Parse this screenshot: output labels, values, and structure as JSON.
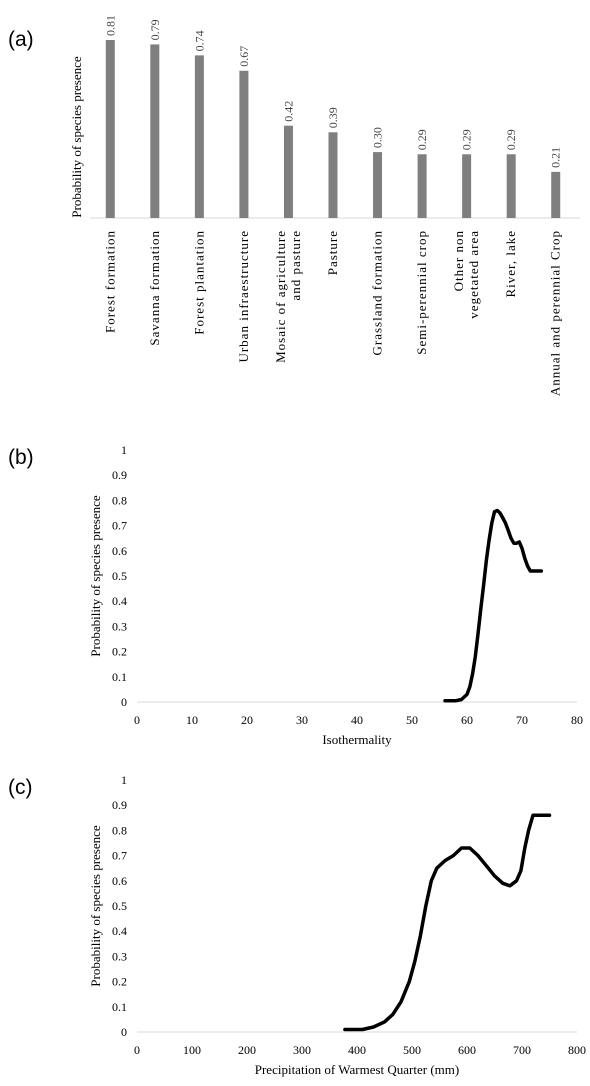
{
  "panels": {
    "a": "(a)",
    "b": "(b)",
    "c": "(c)"
  },
  "chart_data": [
    {
      "type": "bar",
      "ylabel": "Probability of species presence",
      "categories": [
        "Forest formation",
        "Savanna formation",
        "Forest plantation",
        "Urban infraestructure",
        "Mosaic of agriculture and pasture",
        "Pasture",
        "Grassland formation",
        "Semi-perennial crop",
        "Other non vegetated area",
        "River, lake",
        "Annual and perennial Crop"
      ],
      "category_lines": [
        [
          "Forest formation"
        ],
        [
          "Savanna formation"
        ],
        [
          "Forest plantation"
        ],
        [
          "Urban infraestructure"
        ],
        [
          "Mosaic of agriculture",
          "and pasture"
        ],
        [
          "Pasture"
        ],
        [
          "Grassland formation"
        ],
        [
          "Semi-perennial crop"
        ],
        [
          "Other non",
          "vegetated area"
        ],
        [
          "River, lake"
        ],
        [
          "Annual and perennial Crop"
        ]
      ],
      "values": [
        0.81,
        0.79,
        0.74,
        0.67,
        0.42,
        0.39,
        0.3,
        0.29,
        0.29,
        0.29,
        0.21
      ],
      "value_labels": [
        "0.81",
        "0.79",
        "0.74",
        "0.67",
        "0.42",
        "0.39",
        "0.30",
        "0.29",
        "0.29",
        "0.29",
        "0.21"
      ],
      "ylim": [
        0,
        0.85
      ],
      "bar_color": "#7f7f7f",
      "grid": false
    },
    {
      "type": "line",
      "xlabel": "Isothermality",
      "ylabel": "Probability of species presence",
      "xlim": [
        0,
        80
      ],
      "ylim": [
        0,
        1
      ],
      "xticks": [
        "0",
        "10",
        "20",
        "30",
        "40",
        "50",
        "60",
        "70",
        "80"
      ],
      "yticks": [
        "0",
        "0.1",
        "0.2",
        "0.3",
        "0.4",
        "0.5",
        "0.6",
        "0.7",
        "0.8",
        "0.9",
        "1"
      ],
      "x": [
        56,
        58,
        59,
        60,
        60.5,
        61,
        61.5,
        62,
        62.5,
        63,
        63.5,
        64,
        64.5,
        65,
        65.5,
        66,
        66.5,
        67,
        67.5,
        68,
        68.5,
        69,
        69.5,
        70,
        70.5,
        71,
        71.5,
        72,
        73.5
      ],
      "y": [
        0.005,
        0.005,
        0.01,
        0.03,
        0.06,
        0.11,
        0.18,
        0.27,
        0.37,
        0.46,
        0.56,
        0.64,
        0.71,
        0.755,
        0.76,
        0.75,
        0.73,
        0.71,
        0.68,
        0.65,
        0.63,
        0.63,
        0.635,
        0.61,
        0.57,
        0.54,
        0.52,
        0.52,
        0.52
      ],
      "line_color": "#000000",
      "grid": false
    },
    {
      "type": "line",
      "xlabel": "Precipitation of Warmest Quarter  (mm)",
      "ylabel": "Probability of species presence",
      "xlim": [
        0,
        800
      ],
      "ylim": [
        0,
        1
      ],
      "xticks": [
        "0",
        "100",
        "200",
        "300",
        "400",
        "500",
        "600",
        "700",
        "800"
      ],
      "yticks": [
        "0",
        "0.1",
        "0.2",
        "0.3",
        "0.4",
        "0.5",
        "0.6",
        "0.7",
        "0.8",
        "0.9",
        "1"
      ],
      "x": [
        378,
        410,
        430,
        450,
        465,
        480,
        495,
        505,
        515,
        525,
        535,
        545,
        560,
        575,
        590,
        605,
        620,
        635,
        650,
        665,
        678,
        690,
        698,
        705,
        712,
        720,
        750
      ],
      "y": [
        0.01,
        0.01,
        0.02,
        0.04,
        0.07,
        0.12,
        0.2,
        0.28,
        0.38,
        0.5,
        0.6,
        0.65,
        0.68,
        0.7,
        0.73,
        0.73,
        0.7,
        0.66,
        0.62,
        0.59,
        0.58,
        0.6,
        0.64,
        0.73,
        0.8,
        0.86,
        0.86
      ],
      "line_color": "#000000",
      "grid": false
    }
  ]
}
